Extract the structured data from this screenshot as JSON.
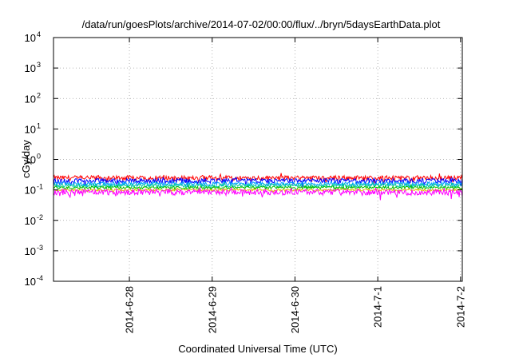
{
  "chart_data": {
    "type": "line",
    "title": "/data/run/goesPlots/archive/2014-07-02/00:00/flux/../bryn/5daysEarthData.plot",
    "xlabel": "Coordinated Universal Time (UTC)",
    "ylabel": "cGy/day",
    "yscale": "log",
    "ylim": [
      0.0001,
      10000
    ],
    "yticks": [
      {
        "base": "10",
        "exp": "-4",
        "value": 0.0001
      },
      {
        "base": "10",
        "exp": "-3",
        "value": 0.001
      },
      {
        "base": "10",
        "exp": "-2",
        "value": 0.01
      },
      {
        "base": "10",
        "exp": "-1",
        "value": 0.1
      },
      {
        "base": "10",
        "exp": "0",
        "value": 1
      },
      {
        "base": "10",
        "exp": "1",
        "value": 10
      },
      {
        "base": "10",
        "exp": "2",
        "value": 100
      },
      {
        "base": "10",
        "exp": "3",
        "value": 1000
      },
      {
        "base": "10",
        "exp": "4",
        "value": 10000
      }
    ],
    "xlim": [
      "2014-06-27 02:00",
      "2014-07-02 00:30"
    ],
    "xticks": [
      {
        "label": "2014-6-28",
        "value": "2014-06-28"
      },
      {
        "label": "2014-6-29",
        "value": "2014-06-29"
      },
      {
        "label": "2014-6-30",
        "value": "2014-06-30"
      },
      {
        "label": "2014-7-1",
        "value": "2014-07-01"
      },
      {
        "label": "2014-7-2",
        "value": "2014-07-02"
      }
    ],
    "grid": true,
    "series": [
      {
        "color": "#ff0000",
        "level": 0.25,
        "spread": 0.18
      },
      {
        "color": "#0000ff",
        "level": 0.2,
        "spread": 0.18
      },
      {
        "color": "#00a0ff",
        "level": 0.16,
        "spread": 0.15
      },
      {
        "color": "#00c8a0",
        "level": 0.14,
        "spread": 0.12
      },
      {
        "color": "#00c000",
        "level": 0.12,
        "spread": 0.1
      },
      {
        "color": "#e0c000",
        "level": 0.1,
        "spread": 0.08
      },
      {
        "color": "#ff00ff",
        "level": 0.085,
        "spread": 0.22
      }
    ]
  }
}
